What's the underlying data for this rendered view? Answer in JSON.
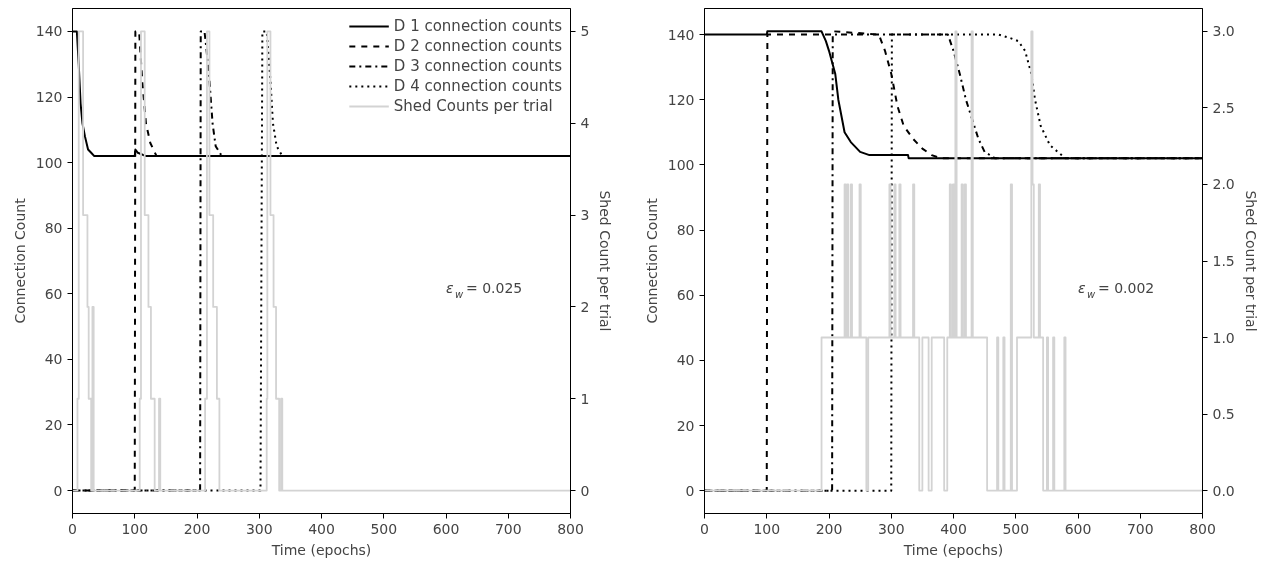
{
  "chart_data": [
    {
      "type": "line",
      "xlabel": "Time (epochs)",
      "ylabel": "Connection Count",
      "y2label": "Shed Count per trial",
      "xlim": [
        0,
        800
      ],
      "xticks": [
        0,
        100,
        200,
        300,
        400,
        500,
        600,
        700,
        800
      ],
      "ylim": [
        -7,
        147
      ],
      "yticks": [
        0,
        20,
        40,
        60,
        80,
        100,
        120,
        140
      ],
      "y2lim": [
        -0.25,
        5.25
      ],
      "y2ticks": [
        0,
        1,
        2,
        3,
        4,
        5
      ],
      "legend": "top right",
      "grid": false,
      "annotations": [
        "ε$_{w}$ = 0.025"
      ],
      "series": [
        {
          "name": "D 1 connection counts",
          "color": "#000000",
          "line_style": "solid",
          "x": [
            0,
            7,
            10,
            13,
            16,
            20,
            25,
            30,
            35,
            100,
            101,
            105,
            118,
            800
          ],
          "values": [
            140,
            140,
            130,
            118,
            112,
            108,
            104,
            103,
            102,
            102,
            104,
            103,
            102,
            102
          ]
        },
        {
          "name": "D 2 connection counts",
          "color": "#000000",
          "line_style": "dashed",
          "x": [
            0,
            100,
            101,
            107,
            112,
            118,
            125,
            135,
            800
          ],
          "values": [
            0,
            0,
            140,
            140,
            125,
            112,
            106,
            102,
            102
          ]
        },
        {
          "name": "D 3 connection counts",
          "color": "#000000",
          "line_style": "dashdot",
          "x": [
            0,
            205,
            206,
            212,
            215,
            220,
            225,
            230,
            240,
            800
          ],
          "values": [
            0,
            0,
            140,
            140,
            135,
            125,
            112,
            105,
            102,
            102
          ]
        },
        {
          "name": "D 4 connection counts",
          "color": "#000000",
          "line_style": "dotted",
          "x": [
            0,
            302,
            305,
            312,
            318,
            322,
            328,
            337,
            800
          ],
          "values": [
            0,
            0,
            140,
            140,
            125,
            112,
            105,
            102,
            102
          ]
        },
        {
          "name": "Shed Counts per trial",
          "type": "step",
          "axis": "y2",
          "color": "#d3d3d3",
          "line_style": "solid",
          "x": [
            0,
            8,
            10,
            17,
            24,
            26,
            30,
            32,
            34,
            108,
            110,
            116,
            122,
            126,
            132,
            139,
            141,
            213,
            216,
            220,
            226,
            232,
            236,
            312,
            313,
            318,
            323,
            327,
            332,
            335,
            337,
            800
          ],
          "values": [
            0,
            1,
            5,
            3,
            2,
            1,
            0,
            2,
            0,
            1,
            5,
            3,
            2,
            1,
            0,
            1,
            0,
            1,
            5,
            3,
            2,
            1,
            0,
            1,
            5,
            3,
            2,
            1,
            0,
            1,
            0,
            0
          ]
        }
      ]
    },
    {
      "type": "line",
      "xlabel": "Time (epochs)",
      "ylabel": "Connection Count",
      "y2label": "Shed Count per trial",
      "xlim": [
        0,
        800
      ],
      "xticks": [
        0,
        100,
        200,
        300,
        400,
        500,
        600,
        700,
        800
      ],
      "ylim": [
        -7,
        148
      ],
      "yticks": [
        0,
        20,
        40,
        60,
        80,
        100,
        120,
        140
      ],
      "y2lim": [
        -0.15,
        3.15
      ],
      "y2ticks": [
        {
          "value": 0,
          "label": "0.0"
        },
        0.5,
        {
          "value": 1,
          "label": "1.0"
        },
        1.5,
        {
          "value": 2,
          "label": "2.0"
        },
        2.5,
        {
          "value": 3,
          "label": "3.0"
        }
      ],
      "legend": false,
      "grid": false,
      "annotations": [
        "ε$_{w}$ = 0.002"
      ],
      "series": [
        {
          "color": "#000000",
          "line_style": "solid",
          "x": [
            0,
            100,
            101,
            188,
            195,
            200,
            210,
            215,
            220,
            225,
            235,
            250,
            265,
            327,
            328,
            800
          ],
          "values": [
            140,
            140,
            141,
            141,
            138,
            135,
            128,
            120,
            115,
            110,
            107,
            104,
            103,
            103,
            102,
            102
          ]
        },
        {
          "color": "#000000",
          "line_style": "dashed",
          "x": [
            0,
            100,
            101,
            206,
            207,
            280,
            290,
            300,
            310,
            320,
            335,
            350,
            365,
            380,
            800
          ],
          "values": [
            0,
            0,
            140,
            140,
            141,
            140,
            135,
            128,
            118,
            112,
            108,
            105,
            103,
            102,
            102
          ]
        },
        {
          "color": "#000000",
          "line_style": "dashdot",
          "x": [
            0,
            205,
            206,
            391,
            400,
            410,
            420,
            430,
            440,
            450,
            467,
            800
          ],
          "values": [
            0,
            0,
            140,
            140,
            135,
            128,
            120,
            114,
            108,
            104,
            102,
            102
          ]
        },
        {
          "color": "#000000",
          "line_style": "dotted",
          "x": [
            0,
            300,
            301,
            472,
            490,
            504,
            515,
            525,
            531,
            540,
            555,
            580,
            800
          ],
          "values": [
            0,
            0,
            140,
            140,
            139,
            138,
            135,
            128,
            120,
            112,
            106,
            102,
            102
          ]
        },
        {
          "type": "step",
          "axis": "y2",
          "color": "#d3d3d3",
          "line_style": "solid",
          "x": [
            0,
            188,
            225,
            227,
            229,
            231,
            235,
            237,
            249,
            251,
            260,
            263,
            297,
            299,
            305,
            307,
            313,
            315,
            335,
            337,
            345,
            350,
            360,
            365,
            385,
            390,
            394,
            396,
            399,
            401,
            403,
            405,
            413,
            415,
            418,
            420,
            429,
            431,
            454,
            470,
            472,
            480,
            482,
            492,
            494,
            502,
            525,
            527,
            529,
            537,
            539,
            544,
            550,
            552,
            560,
            562,
            578,
            580,
            800
          ],
          "values": [
            0,
            1,
            2,
            1,
            2,
            1,
            2,
            1,
            2,
            1,
            0,
            1,
            2,
            1,
            2,
            1,
            2,
            1,
            2,
            1,
            0,
            1,
            0,
            1,
            0,
            1,
            2,
            1,
            2,
            1,
            3,
            1,
            2,
            1,
            2,
            1,
            3,
            1,
            0,
            1,
            0,
            1,
            0,
            2,
            0,
            1,
            3,
            2,
            1,
            2,
            1,
            0,
            1,
            0,
            1,
            0,
            1,
            0,
            0
          ]
        }
      ]
    }
  ]
}
